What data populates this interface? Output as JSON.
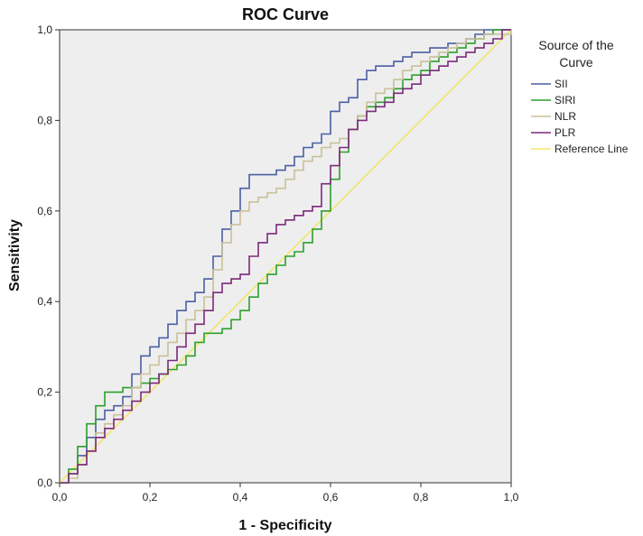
{
  "chart_data": {
    "type": "line",
    "title": "ROC Curve",
    "xlabel": "1 - Specificity",
    "ylabel": "Sensitivity",
    "xlim": [
      0,
      1
    ],
    "ylim": [
      0,
      1
    ],
    "x_ticks": [
      "0,0",
      "0,2",
      "0,4",
      "0,6",
      "0,8",
      "1,0"
    ],
    "y_ticks": [
      "0,0",
      "0,2",
      "0,4",
      "0,6",
      "0,8",
      "1,0"
    ],
    "grid": false,
    "legend": {
      "title_lines": [
        "Source of the",
        "Curve"
      ],
      "placement": "right"
    },
    "series": [
      {
        "name": "SII",
        "color": "#4a5fa3",
        "points": [
          [
            0,
            0
          ],
          [
            0.02,
            0.02
          ],
          [
            0.04,
            0.06
          ],
          [
            0.06,
            0.1
          ],
          [
            0.08,
            0.14
          ],
          [
            0.1,
            0.16
          ],
          [
            0.12,
            0.17
          ],
          [
            0.14,
            0.19
          ],
          [
            0.16,
            0.24
          ],
          [
            0.18,
            0.28
          ],
          [
            0.2,
            0.3
          ],
          [
            0.22,
            0.32
          ],
          [
            0.24,
            0.35
          ],
          [
            0.26,
            0.38
          ],
          [
            0.28,
            0.4
          ],
          [
            0.3,
            0.42
          ],
          [
            0.32,
            0.45
          ],
          [
            0.34,
            0.5
          ],
          [
            0.36,
            0.56
          ],
          [
            0.38,
            0.6
          ],
          [
            0.4,
            0.65
          ],
          [
            0.42,
            0.68
          ],
          [
            0.44,
            0.68
          ],
          [
            0.46,
            0.68
          ],
          [
            0.48,
            0.69
          ],
          [
            0.5,
            0.7
          ],
          [
            0.52,
            0.72
          ],
          [
            0.54,
            0.74
          ],
          [
            0.56,
            0.75
          ],
          [
            0.58,
            0.77
          ],
          [
            0.6,
            0.82
          ],
          [
            0.62,
            0.84
          ],
          [
            0.64,
            0.85
          ],
          [
            0.66,
            0.89
          ],
          [
            0.68,
            0.91
          ],
          [
            0.7,
            0.92
          ],
          [
            0.72,
            0.92
          ],
          [
            0.74,
            0.93
          ],
          [
            0.76,
            0.94
          ],
          [
            0.78,
            0.95
          ],
          [
            0.8,
            0.95
          ],
          [
            0.82,
            0.96
          ],
          [
            0.84,
            0.96
          ],
          [
            0.86,
            0.97
          ],
          [
            0.88,
            0.97
          ],
          [
            0.9,
            0.98
          ],
          [
            0.92,
            0.99
          ],
          [
            0.94,
            1
          ],
          [
            1,
            1
          ]
        ]
      },
      {
        "name": "SIRI",
        "color": "#2ca02c",
        "points": [
          [
            0,
            0
          ],
          [
            0.02,
            0.03
          ],
          [
            0.04,
            0.08
          ],
          [
            0.06,
            0.13
          ],
          [
            0.08,
            0.17
          ],
          [
            0.1,
            0.2
          ],
          [
            0.12,
            0.2
          ],
          [
            0.14,
            0.21
          ],
          [
            0.16,
            0.21
          ],
          [
            0.18,
            0.22
          ],
          [
            0.2,
            0.23
          ],
          [
            0.22,
            0.24
          ],
          [
            0.24,
            0.25
          ],
          [
            0.26,
            0.26
          ],
          [
            0.28,
            0.28
          ],
          [
            0.3,
            0.31
          ],
          [
            0.32,
            0.33
          ],
          [
            0.34,
            0.33
          ],
          [
            0.36,
            0.34
          ],
          [
            0.38,
            0.36
          ],
          [
            0.4,
            0.38
          ],
          [
            0.42,
            0.41
          ],
          [
            0.44,
            0.44
          ],
          [
            0.46,
            0.46
          ],
          [
            0.48,
            0.48
          ],
          [
            0.5,
            0.5
          ],
          [
            0.52,
            0.51
          ],
          [
            0.54,
            0.53
          ],
          [
            0.56,
            0.56
          ],
          [
            0.58,
            0.6
          ],
          [
            0.6,
            0.67
          ],
          [
            0.62,
            0.73
          ],
          [
            0.64,
            0.78
          ],
          [
            0.66,
            0.81
          ],
          [
            0.68,
            0.83
          ],
          [
            0.7,
            0.84
          ],
          [
            0.72,
            0.85
          ],
          [
            0.74,
            0.87
          ],
          [
            0.76,
            0.89
          ],
          [
            0.78,
            0.9
          ],
          [
            0.8,
            0.91
          ],
          [
            0.82,
            0.93
          ],
          [
            0.84,
            0.94
          ],
          [
            0.86,
            0.95
          ],
          [
            0.88,
            0.96
          ],
          [
            0.9,
            0.97
          ],
          [
            0.92,
            0.98
          ],
          [
            0.94,
            0.99
          ],
          [
            0.96,
            1
          ],
          [
            1,
            1
          ]
        ]
      },
      {
        "name": "NLR",
        "color": "#c9c09a",
        "points": [
          [
            0,
            0
          ],
          [
            0.02,
            0.01
          ],
          [
            0.04,
            0.04
          ],
          [
            0.06,
            0.07
          ],
          [
            0.08,
            0.11
          ],
          [
            0.1,
            0.13
          ],
          [
            0.12,
            0.15
          ],
          [
            0.14,
            0.17
          ],
          [
            0.16,
            0.21
          ],
          [
            0.18,
            0.24
          ],
          [
            0.2,
            0.26
          ],
          [
            0.22,
            0.28
          ],
          [
            0.24,
            0.31
          ],
          [
            0.26,
            0.33
          ],
          [
            0.28,
            0.36
          ],
          [
            0.3,
            0.38
          ],
          [
            0.32,
            0.41
          ],
          [
            0.34,
            0.47
          ],
          [
            0.36,
            0.53
          ],
          [
            0.38,
            0.57
          ],
          [
            0.4,
            0.6
          ],
          [
            0.42,
            0.62
          ],
          [
            0.44,
            0.63
          ],
          [
            0.46,
            0.64
          ],
          [
            0.48,
            0.65
          ],
          [
            0.5,
            0.67
          ],
          [
            0.52,
            0.69
          ],
          [
            0.54,
            0.71
          ],
          [
            0.56,
            0.72
          ],
          [
            0.58,
            0.74
          ],
          [
            0.6,
            0.75
          ],
          [
            0.62,
            0.76
          ],
          [
            0.64,
            0.78
          ],
          [
            0.66,
            0.81
          ],
          [
            0.68,
            0.84
          ],
          [
            0.7,
            0.86
          ],
          [
            0.72,
            0.87
          ],
          [
            0.74,
            0.89
          ],
          [
            0.76,
            0.91
          ],
          [
            0.78,
            0.92
          ],
          [
            0.8,
            0.93
          ],
          [
            0.82,
            0.94
          ],
          [
            0.84,
            0.95
          ],
          [
            0.86,
            0.96
          ],
          [
            0.88,
            0.97
          ],
          [
            0.9,
            0.98
          ],
          [
            0.92,
            0.98
          ],
          [
            0.94,
            0.99
          ],
          [
            1,
            1
          ]
        ]
      },
      {
        "name": "PLR",
        "color": "#7b2a7b",
        "points": [
          [
            0,
            0
          ],
          [
            0.02,
            0.02
          ],
          [
            0.04,
            0.04
          ],
          [
            0.06,
            0.07
          ],
          [
            0.08,
            0.1
          ],
          [
            0.1,
            0.12
          ],
          [
            0.12,
            0.14
          ],
          [
            0.14,
            0.16
          ],
          [
            0.16,
            0.18
          ],
          [
            0.18,
            0.2
          ],
          [
            0.2,
            0.22
          ],
          [
            0.22,
            0.24
          ],
          [
            0.24,
            0.27
          ],
          [
            0.26,
            0.3
          ],
          [
            0.28,
            0.33
          ],
          [
            0.3,
            0.35
          ],
          [
            0.32,
            0.38
          ],
          [
            0.34,
            0.42
          ],
          [
            0.36,
            0.44
          ],
          [
            0.38,
            0.45
          ],
          [
            0.4,
            0.46
          ],
          [
            0.42,
            0.5
          ],
          [
            0.44,
            0.53
          ],
          [
            0.46,
            0.55
          ],
          [
            0.48,
            0.57
          ],
          [
            0.5,
            0.58
          ],
          [
            0.52,
            0.59
          ],
          [
            0.54,
            0.6
          ],
          [
            0.56,
            0.61
          ],
          [
            0.58,
            0.66
          ],
          [
            0.6,
            0.7
          ],
          [
            0.62,
            0.74
          ],
          [
            0.64,
            0.78
          ],
          [
            0.66,
            0.8
          ],
          [
            0.68,
            0.82
          ],
          [
            0.7,
            0.83
          ],
          [
            0.72,
            0.84
          ],
          [
            0.74,
            0.86
          ],
          [
            0.76,
            0.87
          ],
          [
            0.78,
            0.88
          ],
          [
            0.8,
            0.9
          ],
          [
            0.82,
            0.91
          ],
          [
            0.84,
            0.92
          ],
          [
            0.86,
            0.93
          ],
          [
            0.88,
            0.94
          ],
          [
            0.9,
            0.95
          ],
          [
            0.92,
            0.96
          ],
          [
            0.94,
            0.97
          ],
          [
            0.96,
            0.98
          ],
          [
            0.98,
            1
          ],
          [
            1,
            1
          ]
        ]
      },
      {
        "name": "Reference Line",
        "color": "#f2e66b",
        "points": [
          [
            0,
            0
          ],
          [
            1,
            1
          ]
        ]
      }
    ]
  }
}
